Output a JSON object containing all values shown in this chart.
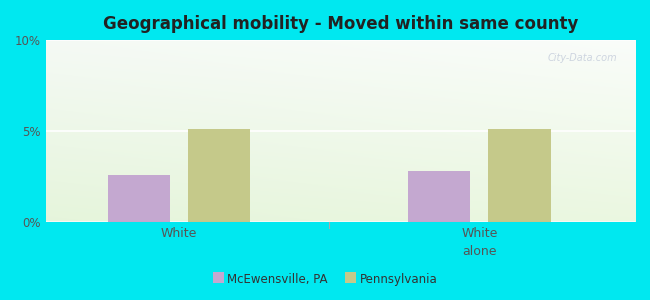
{
  "title": "Geographical mobility - Moved within same county",
  "groups": [
    "White",
    "White\nalone"
  ],
  "series": [
    {
      "label": "McEwensville, PA",
      "values": [
        2.6,
        2.8
      ],
      "color": "#c4a8d0"
    },
    {
      "label": "Pennsylvania",
      "values": [
        5.1,
        5.1
      ],
      "color": "#c5c98a"
    }
  ],
  "ylim": [
    0,
    10
  ],
  "yticks": [
    0,
    5,
    10
  ],
  "ytick_labels": [
    "0%",
    "5%",
    "10%"
  ],
  "background_color": "#00e8f0",
  "grad_color_topleft": "#c8e8c8",
  "grad_color_topright": "#f0f8f0",
  "grad_color_bottomleft": "#b8e0b8",
  "grad_color_bottomright": "#e8f5e8",
  "title_fontsize": 12,
  "bar_width": 0.28,
  "watermark": "City-Data.com",
  "group_centers": [
    0.45,
    1.8
  ]
}
